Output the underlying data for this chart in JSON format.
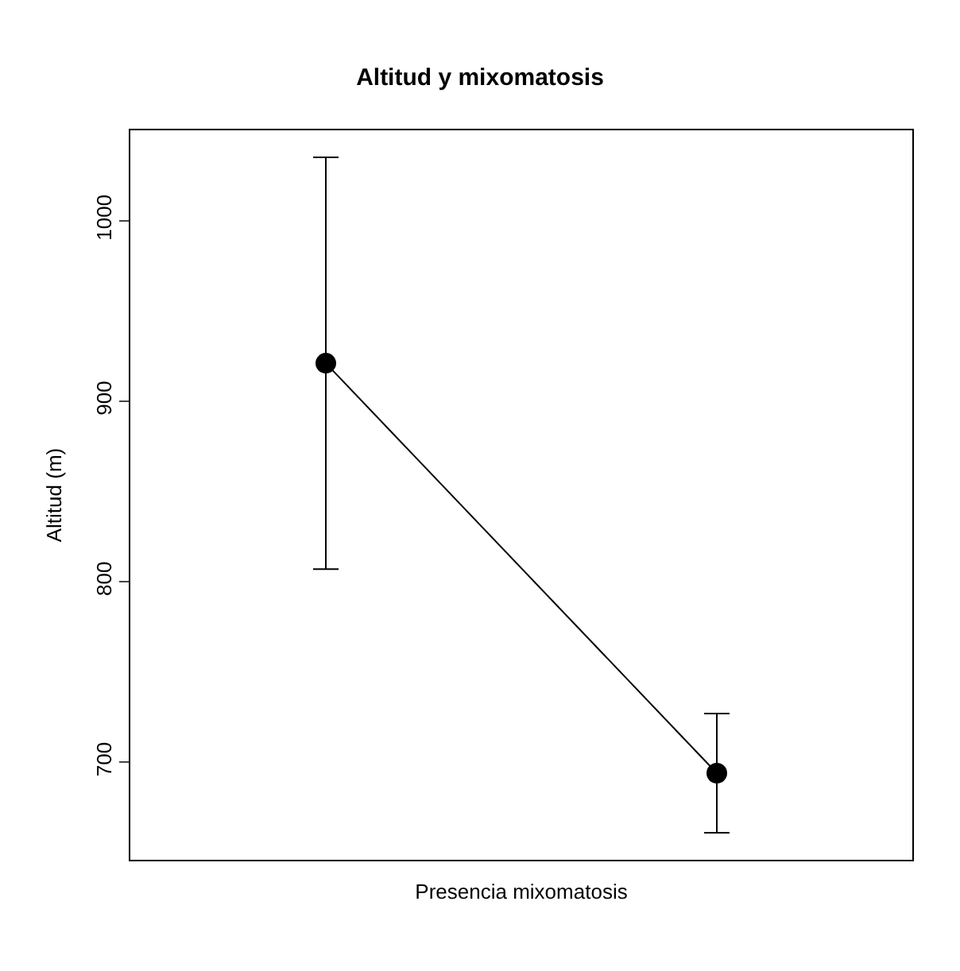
{
  "chart_data": {
    "type": "line",
    "title": "Altitud y mixomatosis",
    "xlabel": "Presencia mixomatosis",
    "ylabel": "Altitud (m)",
    "categories": [
      null,
      null
    ],
    "series": [
      {
        "color": "#000000",
        "values": [
          921,
          694
        ],
        "errors": [
          114,
          33
        ]
      }
    ],
    "ylim": [
      646,
      1050
    ],
    "yticks": [
      700,
      800,
      900,
      1000
    ],
    "grid": false,
    "legend": false,
    "marker": "circle",
    "line_style": "solid",
    "tick_labels": "y"
  }
}
